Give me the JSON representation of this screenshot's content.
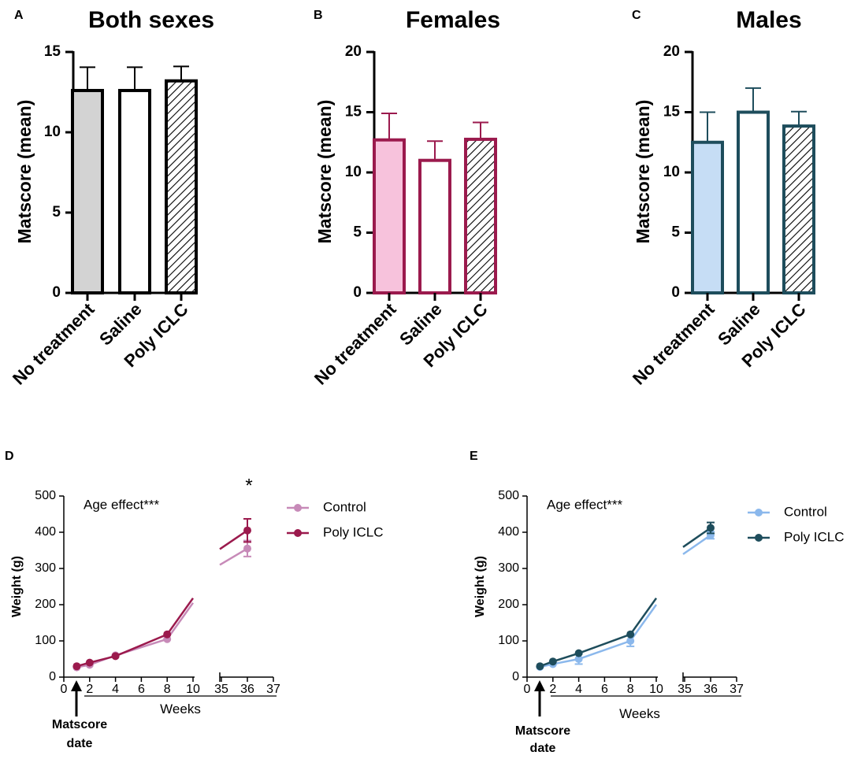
{
  "chart_data": [
    {
      "type": "bar",
      "panel_label": "A",
      "title": "Both sexes",
      "ylabel": "Matscore (mean)",
      "ylim": [
        0,
        15
      ],
      "yticks": [
        "0",
        "5",
        "10",
        "15"
      ],
      "categories": [
        "No treatment",
        "Saline",
        "Poly ICLC"
      ],
      "values": [
        12.6,
        12.6,
        13.2
      ],
      "errors": [
        1.45,
        1.45,
        0.9
      ],
      "color": "#000000",
      "fills": [
        "#d3d3d3",
        "#ffffff",
        "hatch"
      ]
    },
    {
      "type": "bar",
      "panel_label": "B",
      "title": "Females",
      "ylabel": "Matscore (mean)",
      "ylim": [
        0,
        20
      ],
      "yticks": [
        "0",
        "5",
        "10",
        "15",
        "20"
      ],
      "categories": [
        "No treatment",
        "Saline",
        "Poly ICLC"
      ],
      "values": [
        12.7,
        11.0,
        12.75
      ],
      "errors": [
        2.2,
        1.6,
        1.4
      ],
      "color": "#9b1a4d",
      "fills": [
        "#f7c2dc",
        "#ffffff",
        "hatch"
      ]
    },
    {
      "type": "bar",
      "panel_label": "C",
      "title": "Males",
      "ylabel": "Matscore (mean)",
      "ylim": [
        0,
        20
      ],
      "yticks": [
        "0",
        "5",
        "10",
        "15",
        "20"
      ],
      "categories": [
        "No treatment",
        "Saline",
        "Poly ICLC"
      ],
      "values": [
        12.5,
        15.0,
        13.85
      ],
      "errors": [
        2.5,
        2.0,
        1.2
      ],
      "color": "#1e4d5c",
      "fills": [
        "#c6ddf5",
        "#ffffff",
        "hatch"
      ]
    },
    {
      "type": "line",
      "panel_label": "D",
      "ylabel": "Weight (g)",
      "xlabel": "Weeks",
      "ylim": [
        0,
        500
      ],
      "yticks": [
        "0",
        "100",
        "200",
        "300",
        "400",
        "500"
      ],
      "xticks_left": [
        "0",
        "2",
        "4",
        "6",
        "8",
        "10"
      ],
      "xticks_right": [
        "35",
        "36",
        "37"
      ],
      "annotation": "Age effect***",
      "significance": "*",
      "marker_note": "Matscore date",
      "series": [
        {
          "name": "Control",
          "color": "#c78ab8",
          "x": [
            1,
            2,
            4,
            8,
            36
          ],
          "y": [
            27,
            34,
            60,
            105,
            355
          ],
          "err": [
            0,
            0,
            0,
            0,
            22
          ]
        },
        {
          "name": "Poly ICLC",
          "color": "#9b1a4d",
          "x": [
            1,
            2,
            4,
            8,
            36
          ],
          "y": [
            30,
            40,
            58,
            118,
            405
          ],
          "err": [
            0,
            0,
            0,
            0,
            32
          ]
        }
      ]
    },
    {
      "type": "line",
      "panel_label": "E",
      "ylabel": "Weight (g)",
      "xlabel": "Weeks",
      "ylim": [
        0,
        500
      ],
      "yticks": [
        "0",
        "100",
        "200",
        "300",
        "400",
        "500"
      ],
      "xticks_left": [
        "0",
        "2",
        "4",
        "6",
        "8",
        "10"
      ],
      "xticks_right": [
        "35",
        "36",
        "37"
      ],
      "annotation": "Age effect***",
      "marker_note": "Matscore date",
      "series": [
        {
          "name": "Control",
          "color": "#8bb8ec",
          "x": [
            1,
            2,
            4,
            8,
            36
          ],
          "y": [
            28,
            36,
            50,
            100,
            392
          ],
          "err": [
            0,
            0,
            14,
            15,
            10
          ]
        },
        {
          "name": "Poly ICLC",
          "color": "#1e4d5c",
          "x": [
            1,
            2,
            4,
            8,
            36
          ],
          "y": [
            30,
            43,
            66,
            118,
            412
          ],
          "err": [
            0,
            0,
            0,
            0,
            15
          ]
        }
      ]
    }
  ]
}
